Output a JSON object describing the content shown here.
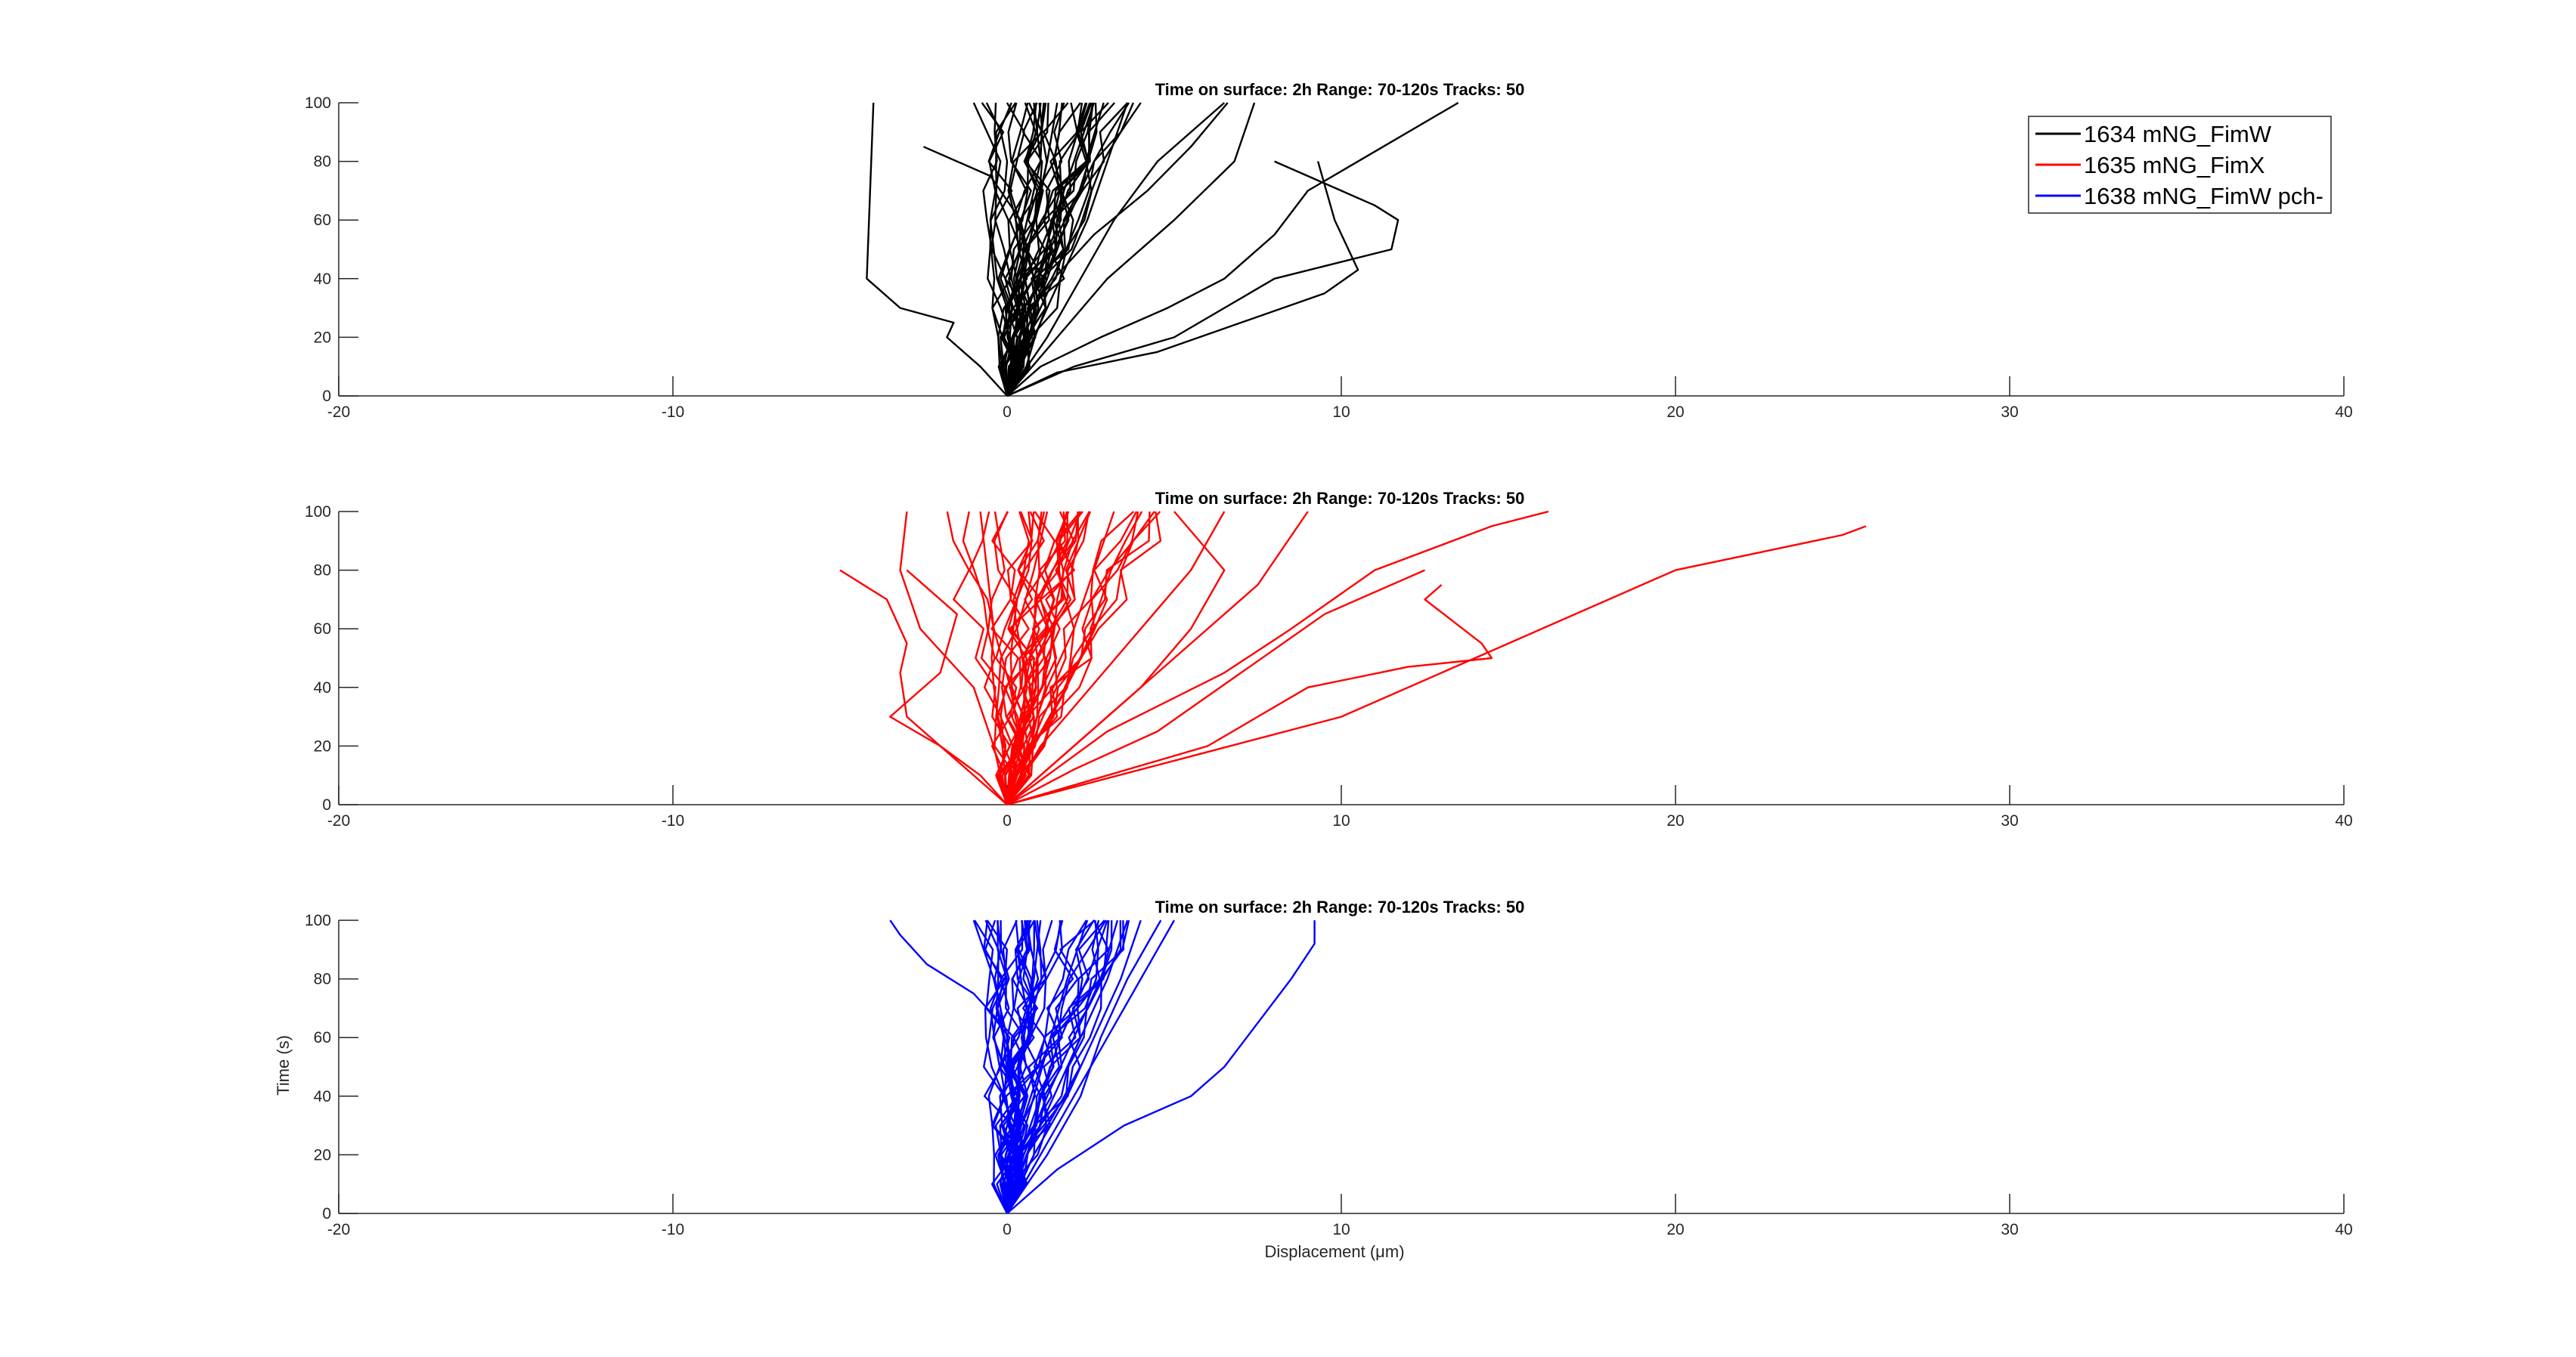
{
  "figure": {
    "xlabel": "Displacement (μm)",
    "ylabel": "Time (s)"
  },
  "legend": {
    "location": "top-right of first panel",
    "entries": [
      {
        "label": "1634 mNG_FimW",
        "color": "#000000"
      },
      {
        "label": "1635 mNG_FimX",
        "color": "#ff0000"
      },
      {
        "label": "1638 mNG_FimW pch-",
        "color": "#0000ff"
      }
    ]
  },
  "chart_data": [
    {
      "type": "line",
      "title": "Time on surface: 2h   Range: 70-120s   Tracks: 50",
      "xlabel": "",
      "ylabel": "",
      "xlim": [
        -20,
        40
      ],
      "ylim": [
        0,
        100
      ],
      "xticks": [
        -20,
        -10,
        0,
        10,
        20,
        30,
        40
      ],
      "yticks": [
        0,
        20,
        40,
        60,
        80,
        100
      ],
      "grid": false,
      "color": "#000000",
      "track_count": 50,
      "representative_tracks": [
        {
          "x": [
            0,
            -0.8,
            -1.8,
            -1.6,
            -3.2,
            -4.2,
            -4.1,
            -4.0
          ],
          "y": [
            0,
            10,
            20,
            25,
            30,
            40,
            70,
            100
          ]
        },
        {
          "x": [
            0,
            0.5,
            1.2,
            1.8,
            2.6,
            3.4,
            4.0
          ],
          "y": [
            0,
            20,
            40,
            60,
            80,
            90,
            100
          ]
        },
        {
          "x": [
            0,
            1.0,
            2.8,
            4.8,
            6.5,
            8.0,
            9.0,
            13.5
          ],
          "y": [
            0,
            10,
            20,
            30,
            40,
            55,
            70,
            100
          ]
        },
        {
          "x": [
            0,
            2.0,
            5.0,
            8.0,
            11.5,
            11.7,
            11.0,
            9.0,
            8.0
          ],
          "y": [
            0,
            10,
            20,
            40,
            50,
            60,
            65,
            75,
            80
          ]
        },
        {
          "x": [
            0,
            1.5,
            4.5,
            9.5,
            10.5,
            9.8,
            9.3
          ],
          "y": [
            0,
            8,
            15,
            35,
            43,
            60,
            80
          ]
        },
        {
          "x": [
            0,
            -0.2,
            0.8,
            0.4,
            -0.5,
            -2.5
          ],
          "y": [
            0,
            20,
            40,
            60,
            75,
            85
          ]
        },
        {
          "x": [
            0,
            0.3,
            -0.3,
            -0.5,
            -0.2,
            -1.0
          ],
          "y": [
            0,
            20,
            40,
            60,
            80,
            100
          ]
        },
        {
          "x": [
            0,
            0.8,
            1.6,
            2.4,
            3.0,
            3.6
          ],
          "y": [
            0,
            20,
            40,
            60,
            80,
            100
          ]
        },
        {
          "x": [
            0,
            1.2,
            2.2,
            3.2,
            4.5,
            6.5
          ],
          "y": [
            0,
            20,
            40,
            60,
            80,
            100
          ]
        },
        {
          "x": [
            0,
            0.4,
            0.9,
            1.4,
            2.0,
            2.6
          ],
          "y": [
            0,
            20,
            40,
            60,
            80,
            100
          ]
        },
        {
          "x": [
            0,
            0.6,
            1.4,
            2.6,
            4.2,
            5.5,
            6.6
          ],
          "y": [
            0,
            20,
            40,
            55,
            70,
            85,
            100
          ]
        },
        {
          "x": [
            0,
            0.2,
            0.5,
            0.8,
            1.2,
            1.5
          ],
          "y": [
            0,
            20,
            40,
            60,
            80,
            100
          ]
        },
        {
          "x": [
            0,
            1.5,
            3.0,
            5.0,
            6.8,
            7.4
          ],
          "y": [
            0,
            20,
            40,
            60,
            80,
            100
          ]
        },
        {
          "x": [
            0,
            0.5,
            0.2,
            0.6,
            1.0,
            0.8
          ],
          "y": [
            0,
            20,
            40,
            60,
            80,
            100
          ]
        }
      ]
    },
    {
      "type": "line",
      "title": "Time on surface: 2h   Range: 70-120s   Tracks: 50",
      "xlabel": "",
      "ylabel": "",
      "xlim": [
        -20,
        40
      ],
      "ylim": [
        0,
        100
      ],
      "xticks": [
        -20,
        -10,
        0,
        10,
        20,
        30,
        40
      ],
      "yticks": [
        0,
        20,
        40,
        60,
        80,
        100
      ],
      "grid": false,
      "color": "#ff0000",
      "track_count": 50,
      "representative_tracks": [
        {
          "x": [
            0,
            5.0,
            10.0,
            15.0,
            20.0,
            25.0,
            25.7
          ],
          "y": [
            0,
            15,
            30,
            55,
            80,
            92,
            95
          ]
        },
        {
          "x": [
            0,
            3.0,
            6.0,
            9.0,
            12.0,
            14.5,
            14.2,
            12.5,
            13.0
          ],
          "y": [
            0,
            10,
            20,
            40,
            47,
            50,
            55,
            70,
            75
          ]
        },
        {
          "x": [
            0,
            2.0,
            4.5,
            7.0,
            9.5,
            12.5
          ],
          "y": [
            0,
            12,
            25,
            45,
            65,
            80
          ]
        },
        {
          "x": [
            0,
            3.0,
            6.5,
            8.5,
            11.0,
            14.5,
            16.2
          ],
          "y": [
            0,
            25,
            45,
            60,
            80,
            95,
            100
          ]
        },
        {
          "x": [
            0,
            -1.5,
            -3.0,
            -3.2,
            -3.0,
            -3.6,
            -5.0
          ],
          "y": [
            0,
            15,
            30,
            45,
            55,
            70,
            80
          ]
        },
        {
          "x": [
            0,
            -0.4,
            -1.0,
            -2.6,
            -3.2,
            -3.0
          ],
          "y": [
            0,
            20,
            40,
            60,
            80,
            100
          ]
        },
        {
          "x": [
            0,
            -0.8,
            -2.0,
            -3.5,
            -2.0,
            -1.5,
            -3.0
          ],
          "y": [
            0,
            10,
            20,
            30,
            45,
            65,
            80
          ]
        },
        {
          "x": [
            0,
            0.6,
            1.2,
            2.0,
            2.6,
            3.2
          ],
          "y": [
            0,
            20,
            40,
            60,
            80,
            100
          ]
        },
        {
          "x": [
            0,
            1.5,
            3.5,
            5.5,
            7.5,
            9.0
          ],
          "y": [
            0,
            15,
            35,
            55,
            75,
            100
          ]
        },
        {
          "x": [
            0,
            0.2,
            0.6,
            0.3,
            0.8,
            1.2
          ],
          "y": [
            0,
            20,
            40,
            60,
            80,
            100
          ]
        },
        {
          "x": [
            0,
            1.0,
            2.5,
            4.0,
            5.5,
            6.5
          ],
          "y": [
            0,
            20,
            40,
            60,
            80,
            100
          ]
        },
        {
          "x": [
            0,
            0.4,
            0.1,
            -0.4,
            -0.6,
            -0.8
          ],
          "y": [
            0,
            20,
            40,
            60,
            80,
            100
          ]
        },
        {
          "x": [
            0,
            2.0,
            4.0,
            5.5,
            6.5,
            5.0
          ],
          "y": [
            0,
            20,
            40,
            60,
            80,
            100
          ]
        },
        {
          "x": [
            0,
            0.8,
            1.8,
            2.0,
            1.5,
            2.2
          ],
          "y": [
            0,
            20,
            40,
            60,
            80,
            100
          ]
        }
      ]
    },
    {
      "type": "line",
      "title": "Time on surface: 2h   Range: 70-120s   Tracks: 50",
      "xlabel": "Displacement (μm)",
      "ylabel": "Time (s)",
      "xlim": [
        -20,
        40
      ],
      "ylim": [
        0,
        100
      ],
      "xticks": [
        -20,
        -10,
        0,
        10,
        20,
        30,
        40
      ],
      "yticks": [
        0,
        20,
        40,
        60,
        80,
        100
      ],
      "grid": false,
      "color": "#0000ff",
      "track_count": 50,
      "representative_tracks": [
        {
          "x": [
            0,
            1.5,
            3.5,
            5.5,
            6.5,
            7.5,
            8.5,
            9.2,
            9.2
          ],
          "y": [
            0,
            15,
            30,
            40,
            50,
            65,
            80,
            92,
            100
          ]
        },
        {
          "x": [
            0,
            0.6,
            1.0,
            0.2,
            -1.0,
            -2.4,
            -3.2,
            -3.5
          ],
          "y": [
            0,
            20,
            40,
            60,
            75,
            85,
            95,
            100
          ]
        },
        {
          "x": [
            0,
            1.0,
            2.0,
            3.0,
            4.0,
            5.0
          ],
          "y": [
            0,
            20,
            40,
            60,
            80,
            100
          ]
        },
        {
          "x": [
            0,
            0.6,
            1.4,
            2.2,
            3.0,
            3.6
          ],
          "y": [
            0,
            20,
            40,
            60,
            80,
            100
          ]
        },
        {
          "x": [
            0,
            0.3,
            0.8,
            1.3,
            1.8,
            2.4
          ],
          "y": [
            0,
            20,
            40,
            60,
            80,
            100
          ]
        },
        {
          "x": [
            0,
            0.1,
            0.3,
            0.5,
            0.8,
            1.0
          ],
          "y": [
            0,
            20,
            40,
            60,
            80,
            100
          ]
        },
        {
          "x": [
            0,
            0.8,
            1.8,
            2.6,
            3.4,
            4.0
          ],
          "y": [
            0,
            20,
            40,
            60,
            80,
            100
          ]
        },
        {
          "x": [
            0,
            0.4,
            1.0,
            1.6,
            2.4,
            3.0
          ],
          "y": [
            0,
            20,
            40,
            60,
            80,
            100
          ]
        },
        {
          "x": [
            0,
            -0.2,
            0.2,
            0.0,
            -0.4,
            -1.0
          ],
          "y": [
            0,
            20,
            40,
            60,
            80,
            100
          ]
        },
        {
          "x": [
            0,
            0.5,
            1.2,
            2.0,
            2.8,
            3.3
          ],
          "y": [
            0,
            20,
            40,
            60,
            80,
            100
          ]
        },
        {
          "x": [
            0,
            1.2,
            2.2,
            2.8,
            3.6,
            4.6
          ],
          "y": [
            0,
            20,
            40,
            60,
            80,
            100
          ]
        }
      ]
    }
  ]
}
